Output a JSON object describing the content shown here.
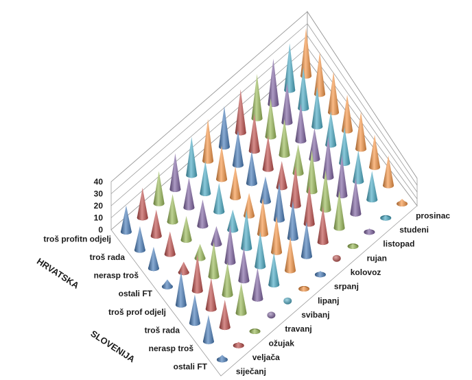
{
  "chart_data": {
    "type": "3d-cone",
    "zlim": [
      0,
      40
    ],
    "z_ticks": [
      "0",
      "10",
      "20",
      "30",
      "40"
    ],
    "months": [
      "siječanj",
      "veljača",
      "ožujak",
      "travanj",
      "svibanj",
      "lipanj",
      "srpanj",
      "kolovoz",
      "rujan",
      "listopad",
      "studeni",
      "prosinac"
    ],
    "categories": [
      "troš profitn odjelj",
      "troš rada",
      "nerasp troš",
      "ostali FT",
      "troš prof odjelj",
      "troš rada",
      "nerasp troš",
      "ostali FT"
    ],
    "groups": [
      {
        "name": "HRVATSKA",
        "rows": [
          0,
          1,
          2,
          3
        ]
      },
      {
        "name": "SLOVENIJA",
        "rows": [
          4,
          5,
          6,
          7
        ]
      }
    ],
    "month_colors": [
      "#4a7ebb",
      "#c0504d",
      "#9bbb59",
      "#8064a2",
      "#4bacc6",
      "#f79646",
      "#4a7ebb",
      "#c0504d",
      "#9bbb59",
      "#8064a2",
      "#4bacc6",
      "#f79646"
    ],
    "values": [
      [
        22,
        25,
        27,
        30,
        32,
        35,
        34,
        36,
        37,
        38,
        39,
        40
      ],
      [
        20,
        22,
        23,
        25,
        27,
        28,
        29,
        31,
        32,
        33,
        34,
        35
      ],
      [
        18,
        19,
        20,
        22,
        24,
        26,
        27,
        28,
        30,
        31,
        33,
        34
      ],
      [
        6,
        9,
        12,
        15,
        17,
        19,
        21,
        22,
        24,
        26,
        28,
        30
      ],
      [
        28,
        30,
        29,
        31,
        32,
        30,
        31,
        33,
        35,
        34,
        30,
        31
      ],
      [
        24,
        26,
        27,
        28,
        29,
        30,
        31,
        32,
        33,
        34,
        26,
        27
      ],
      [
        22,
        23,
        25,
        26,
        27,
        28,
        29,
        30,
        31,
        30,
        24,
        25
      ],
      [
        4,
        3,
        2,
        1,
        1,
        2,
        3,
        1,
        2,
        3,
        2,
        4
      ]
    ]
  }
}
